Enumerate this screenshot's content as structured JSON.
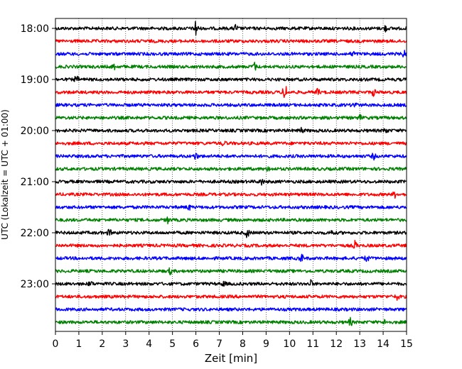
{
  "chart_data": {
    "type": "line",
    "title": "",
    "xlabel": "Zeit  [min]",
    "ylabel": "UTC (Lokalzeit = UTC + 01:00)",
    "xlim": [
      0,
      15
    ],
    "x_ticks": [
      0,
      1,
      2,
      3,
      4,
      5,
      6,
      7,
      8,
      9,
      10,
      11,
      12,
      13,
      14,
      15
    ],
    "y_tick_labels": [
      "18:00",
      "19:00",
      "20:00",
      "21:00",
      "22:00",
      "23:00"
    ],
    "grid": "vertical dotted",
    "colors": [
      "#000000",
      "#ff0000",
      "#0000ff",
      "#008000"
    ],
    "traces": [
      {
        "start": "18:00",
        "color": "#000000"
      },
      {
        "start": "18:15",
        "color": "#ff0000"
      },
      {
        "start": "18:30",
        "color": "#0000ff"
      },
      {
        "start": "18:45",
        "color": "#008000"
      },
      {
        "start": "19:00",
        "color": "#000000"
      },
      {
        "start": "19:15",
        "color": "#ff0000"
      },
      {
        "start": "19:30",
        "color": "#0000ff"
      },
      {
        "start": "19:45",
        "color": "#008000"
      },
      {
        "start": "20:00",
        "color": "#000000"
      },
      {
        "start": "20:15",
        "color": "#ff0000"
      },
      {
        "start": "20:30",
        "color": "#0000ff"
      },
      {
        "start": "20:45",
        "color": "#008000"
      },
      {
        "start": "21:00",
        "color": "#000000"
      },
      {
        "start": "21:15",
        "color": "#ff0000"
      },
      {
        "start": "21:30",
        "color": "#0000ff"
      },
      {
        "start": "21:45",
        "color": "#008000"
      },
      {
        "start": "22:00",
        "color": "#000000"
      },
      {
        "start": "22:15",
        "color": "#ff0000"
      },
      {
        "start": "22:30",
        "color": "#0000ff"
      },
      {
        "start": "22:45",
        "color": "#008000"
      },
      {
        "start": "23:00",
        "color": "#000000"
      },
      {
        "start": "23:15",
        "color": "#ff0000"
      },
      {
        "start": "23:30",
        "color": "#0000ff"
      },
      {
        "start": "23:45",
        "color": "#008000"
      }
    ]
  }
}
